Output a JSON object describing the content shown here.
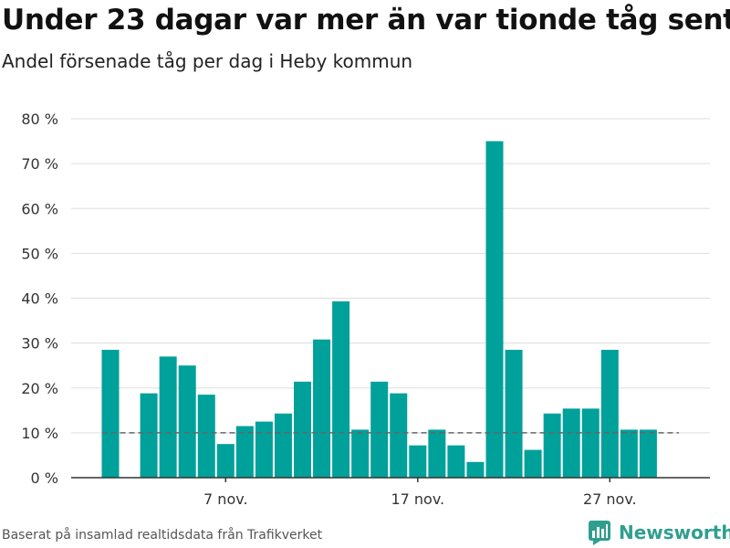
{
  "title": "Under 23 dagar var mer än var tionde tåg sent",
  "subtitle": "Andel försenade tåg per dag i Heby kommun",
  "source": "Baserat på insamlad realtidsdata från Trafikverket",
  "brand": "Newsworthy",
  "colors": {
    "bar": "#00a19a",
    "grid": "#dddddd",
    "reference": "#666666",
    "brand": "#2f9e8f"
  },
  "chart_data": {
    "type": "bar",
    "x": [
      1,
      2,
      3,
      4,
      5,
      6,
      7,
      8,
      9,
      10,
      11,
      12,
      13,
      14,
      15,
      16,
      17,
      18,
      19,
      20,
      21,
      22,
      23,
      24,
      25,
      26,
      27,
      28,
      29,
      30
    ],
    "values": [
      28.5,
      null,
      18.8,
      27,
      25,
      18.5,
      7.5,
      11.5,
      12.5,
      14.3,
      21.4,
      30.8,
      39.3,
      10.7,
      21.4,
      18.8,
      7.2,
      10.7,
      7.2,
      3.5,
      75,
      28.5,
      6.2,
      14.3,
      15.4,
      15.4,
      28.5,
      10.7,
      10.7,
      null
    ],
    "yticks": [
      0,
      10,
      20,
      30,
      40,
      50,
      60,
      70,
      80
    ],
    "ytick_labels": [
      "0 %",
      "10 %",
      "20 %",
      "30 %",
      "40 %",
      "50 %",
      "60 %",
      "70 %",
      "80 %"
    ],
    "xticks": [
      7,
      17,
      27
    ],
    "xtick_labels": [
      "7 nov.",
      "17 nov.",
      "27 nov."
    ],
    "ylim": [
      0,
      80
    ],
    "reference_line": 10,
    "grid": true
  }
}
